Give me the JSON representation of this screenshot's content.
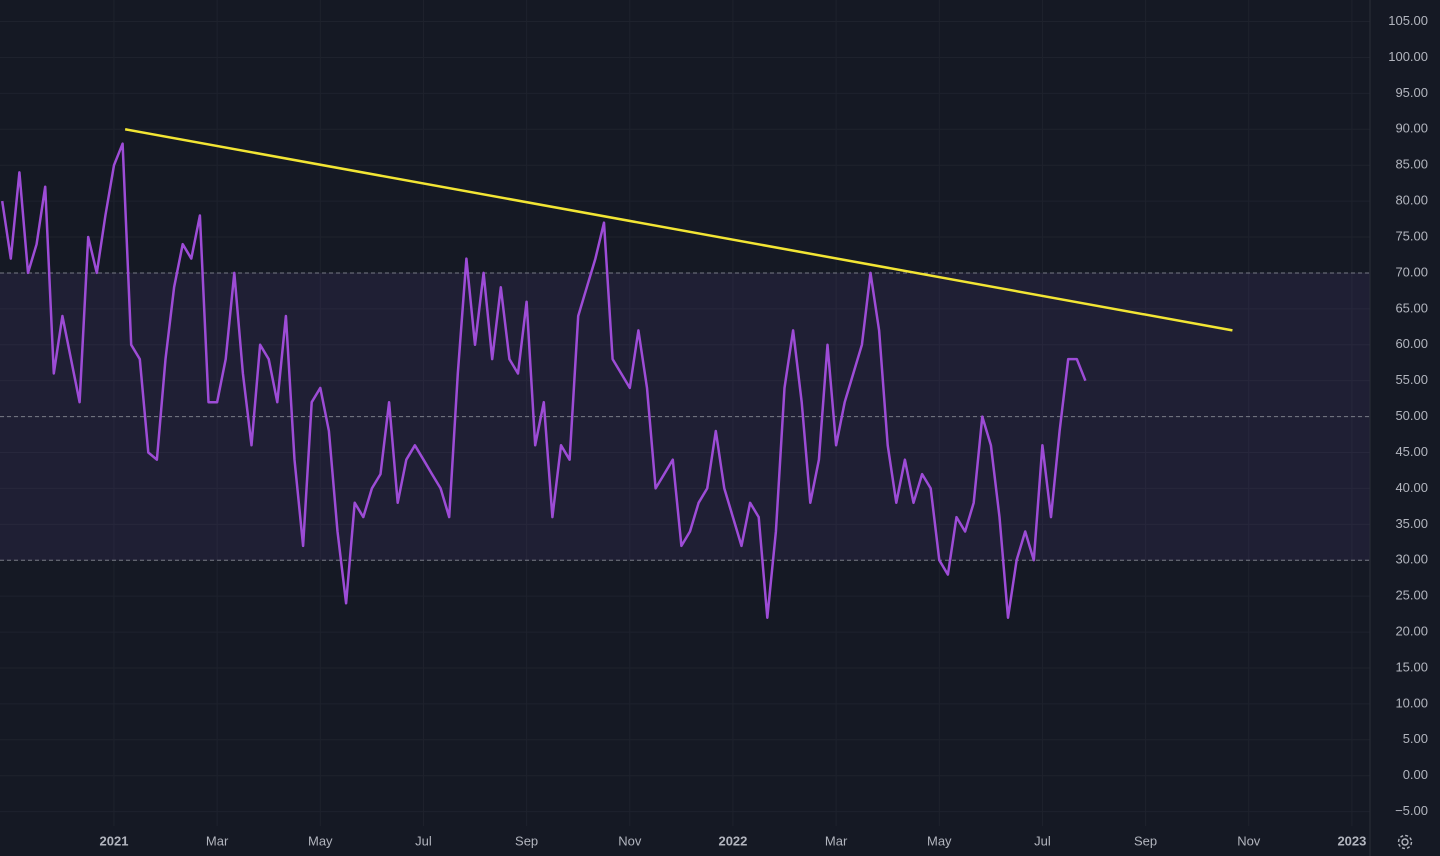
{
  "chart_data": {
    "type": "line",
    "categories": [
      null,
      null,
      null,
      null,
      null,
      null,
      null,
      null,
      null,
      null,
      null,
      null,
      null,
      "2021",
      null,
      null,
      null,
      null,
      null,
      null,
      null,
      null,
      null,
      null,
      null,
      "Mar",
      null,
      null,
      null,
      null,
      null,
      null,
      null,
      null,
      null,
      null,
      null,
      "May",
      null,
      null,
      null,
      null,
      null,
      null,
      null,
      null,
      null,
      null,
      null,
      "Jul",
      null,
      null,
      null,
      null,
      null,
      null,
      null,
      null,
      null,
      null,
      null,
      "Sep",
      null,
      null,
      null,
      null,
      null,
      null,
      null,
      null,
      null,
      null,
      null,
      "Nov",
      null,
      null,
      null,
      null,
      null,
      null,
      null,
      null,
      null,
      null,
      null,
      "2022",
      null,
      null,
      null,
      null,
      null,
      null,
      null,
      null,
      null,
      null,
      null,
      "Mar",
      null,
      null,
      null,
      null,
      null,
      null,
      null,
      null,
      null,
      null,
      null,
      "May",
      null,
      null,
      null,
      null,
      null,
      null,
      null,
      null,
      null,
      null,
      null,
      "Jul",
      null,
      null,
      null,
      null,
      null,
      null,
      null,
      null,
      null,
      null,
      null,
      "Sep",
      null,
      null,
      null,
      null,
      null,
      null,
      null,
      null,
      null,
      null,
      null,
      "Nov",
      null,
      null,
      null,
      null,
      null,
      null,
      null,
      null,
      null,
      null,
      null,
      "2023"
    ],
    "series": [
      {
        "color": "#9d4cd6",
        "values": [
          80,
          72,
          84,
          70,
          74,
          82,
          56,
          64,
          58,
          52,
          75,
          70,
          78,
          85,
          88,
          60,
          58,
          45,
          44,
          58,
          68,
          74,
          72,
          78,
          52,
          52,
          58,
          70,
          56,
          46,
          60,
          58,
          52,
          64,
          44,
          32,
          52,
          54,
          48,
          34,
          24,
          38,
          36,
          40,
          42,
          52,
          38,
          44,
          46,
          44,
          42,
          40,
          36,
          56,
          72,
          60,
          70,
          58,
          68,
          58,
          56,
          66,
          46,
          52,
          36,
          46,
          44,
          64,
          68,
          72,
          77,
          58,
          56,
          54,
          62,
          54,
          40,
          42,
          44,
          32,
          34,
          38,
          40,
          48,
          40,
          36,
          32,
          38,
          36,
          22,
          34,
          54,
          62,
          52,
          38,
          44,
          60,
          46,
          52,
          56,
          60,
          70,
          62,
          46,
          38,
          44,
          38,
          42,
          40,
          30,
          28,
          36,
          34,
          38,
          50,
          46,
          36,
          22,
          30,
          34,
          30,
          46,
          36,
          48,
          58,
          58,
          55,
          null,
          null,
          null,
          null,
          null,
          null,
          null,
          null,
          null,
          null,
          null,
          null,
          null,
          null,
          null,
          null,
          null,
          null,
          null,
          null,
          null,
          null,
          null,
          null,
          null,
          null,
          null,
          null,
          null,
          null,
          null
        ]
      }
    ],
    "trendline": {
      "x": [
        14.3,
        143.1
      ],
      "values": [
        90,
        62
      ],
      "color": "#f2e534"
    },
    "band": [
      30,
      70
    ],
    "band_color": "#7e57c2",
    "hlines": [
      70,
      50,
      30
    ],
    "ylim": [
      -7,
      108
    ],
    "yticks": [
      {
        "value": 105,
        "label": "105.00"
      },
      {
        "value": 100,
        "label": "100.00"
      },
      {
        "value": 95,
        "label": "95.00"
      },
      {
        "value": 90,
        "label": "90.00"
      },
      {
        "value": 85,
        "label": "85.00"
      },
      {
        "value": 80,
        "label": "80.00"
      },
      {
        "value": 75,
        "label": "75.00"
      },
      {
        "value": 70,
        "label": "70.00"
      },
      {
        "value": 65,
        "label": "65.00"
      },
      {
        "value": 60,
        "label": "60.00"
      },
      {
        "value": 55,
        "label": "55.00"
      },
      {
        "value": 50,
        "label": "50.00"
      },
      {
        "value": 45,
        "label": "45.00"
      },
      {
        "value": 40,
        "label": "40.00"
      },
      {
        "value": 35,
        "label": "35.00"
      },
      {
        "value": 30,
        "label": "30.00"
      },
      {
        "value": 25,
        "label": "25.00"
      },
      {
        "value": 20,
        "label": "20.00"
      },
      {
        "value": 15,
        "label": "15.00"
      },
      {
        "value": 10,
        "label": "10.00"
      },
      {
        "value": 5,
        "label": "5.00"
      },
      {
        "value": 0,
        "label": "0.00"
      },
      {
        "value": -5,
        "label": "−5.00"
      }
    ],
    "grid": true
  }
}
